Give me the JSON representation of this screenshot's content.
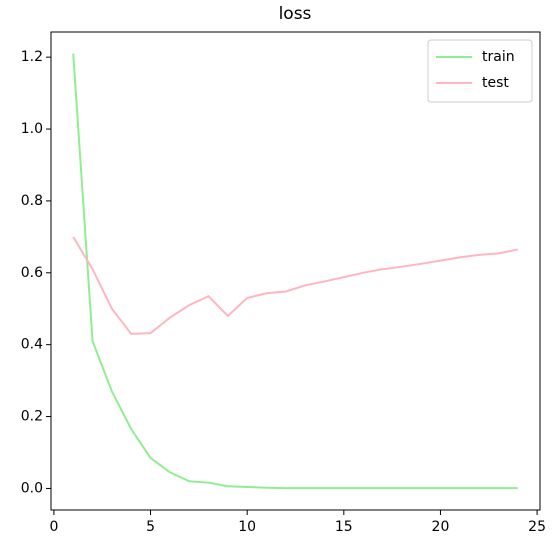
{
  "chart_data": {
    "type": "line",
    "title": "loss",
    "x": [
      1,
      2,
      3,
      4,
      5,
      6,
      7,
      8,
      9,
      10,
      11,
      12,
      13,
      14,
      15,
      16,
      17,
      18,
      19,
      20,
      21,
      22,
      23,
      24
    ],
    "series": [
      {
        "name": "train",
        "color": "#90ee90",
        "values": [
          1.21,
          0.41,
          0.27,
          0.165,
          0.085,
          0.045,
          0.02,
          0.016,
          0.006,
          0.004,
          0.002,
          0.001,
          0.001,
          0.001,
          0.001,
          0.001,
          0.001,
          0.001,
          0.001,
          0.001,
          0.001,
          0.001,
          0.001,
          0.001
        ]
      },
      {
        "name": "test",
        "color": "#ffb6c1",
        "values": [
          0.7,
          0.61,
          0.5,
          0.43,
          0.432,
          0.475,
          0.51,
          0.535,
          0.48,
          0.53,
          0.543,
          0.548,
          0.565,
          0.576,
          0.588,
          0.6,
          0.61,
          0.617,
          0.625,
          0.634,
          0.643,
          0.65,
          0.654,
          0.665
        ]
      }
    ],
    "xlim": [
      -0.15,
      25.15
    ],
    "xticks": [
      0,
      5,
      10,
      15,
      20,
      25
    ],
    "ylim": [
      -0.06,
      1.27
    ],
    "yticks": [
      {
        "value": 0,
        "label": "0.0"
      },
      {
        "value": 0.2,
        "label": "0.2"
      },
      {
        "value": 0.4,
        "label": "0.4"
      },
      {
        "value": 0.6,
        "label": "0.6"
      },
      {
        "value": 0.8,
        "label": "0.8"
      },
      {
        "value": 1.0,
        "label": "1.0"
      },
      {
        "value": 1.2,
        "label": "1.2"
      }
    ],
    "legend": "upper right"
  }
}
